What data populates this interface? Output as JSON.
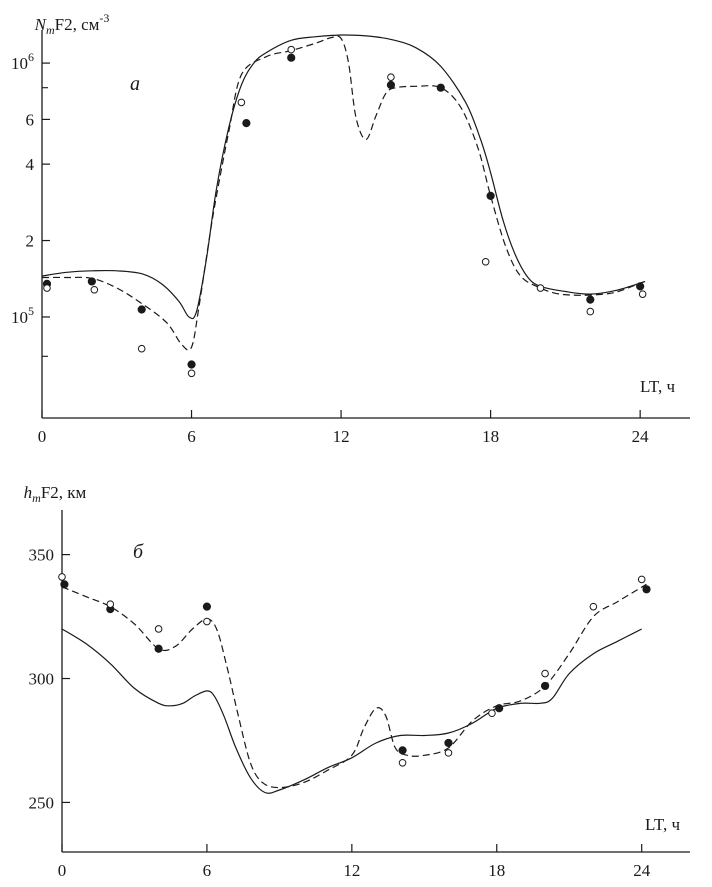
{
  "chart_data": [
    {
      "type": "line",
      "panel_label": "а",
      "ylabel": {
        "main": "N",
        "sub": "m",
        "rest": "F2, см",
        "sup": "-3"
      },
      "xlabel": "LT, ч",
      "xlim": [
        0,
        26
      ],
      "ylim": [
        40000,
        1350000
      ],
      "yscale": "log",
      "xticks": [
        0,
        6,
        12,
        18,
        24
      ],
      "yticks": [
        {
          "value": 100000,
          "base": "10",
          "sup": "5"
        },
        {
          "value": 200000,
          "label": "2"
        },
        {
          "value": 400000,
          "label": "4"
        },
        {
          "value": 600000,
          "label": "6"
        },
        {
          "value": 1000000,
          "base": "10",
          "sup": "6"
        }
      ],
      "minor_yticks": [
        70000,
        800000
      ],
      "series": [
        {
          "style": "solid",
          "x": [
            0,
            1,
            2,
            3,
            4,
            4.8,
            5.5,
            5.9,
            6.2,
            6.6,
            7,
            7.5,
            8,
            8.5,
            9,
            10,
            11,
            12,
            13,
            14,
            15,
            16,
            17,
            17.6,
            18,
            18.5,
            19,
            19.5,
            20,
            21,
            22,
            23,
            24.2
          ],
          "y": [
            145000,
            150000,
            152000,
            152000,
            148000,
            135000,
            115000,
            100000,
            105000,
            170000,
            320000,
            560000,
            820000,
            1000000,
            1100000,
            1230000,
            1270000,
            1290000,
            1280000,
            1240000,
            1150000,
            970000,
            700000,
            500000,
            370000,
            240000,
            175000,
            143000,
            132000,
            126000,
            123000,
            127000,
            138000
          ]
        },
        {
          "style": "dashed",
          "x": [
            0,
            1,
            2,
            3,
            4,
            5,
            5.6,
            6,
            6.3,
            6.7,
            7,
            7.5,
            8,
            9,
            10,
            11,
            11.6,
            12,
            12.3,
            12.6,
            13,
            13.4,
            13.8,
            14.2,
            15,
            16,
            16.8,
            17.5,
            18,
            18.6,
            19.2,
            20,
            20.6,
            21.2,
            22,
            23,
            24
          ],
          "y": [
            143000,
            143000,
            142000,
            130000,
            113000,
            95000,
            78000,
            76000,
            110000,
            200000,
            300000,
            540000,
            900000,
            1060000,
            1120000,
            1200000,
            1260000,
            1250000,
            1000000,
            610000,
            500000,
            620000,
            760000,
            800000,
            810000,
            800000,
            670000,
            460000,
            300000,
            190000,
            145000,
            130000,
            124000,
            122000,
            122000,
            125000,
            136000
          ]
        }
      ],
      "points": [
        {
          "marker": "filled",
          "x": [
            0.2,
            2,
            4,
            6,
            8.2,
            10,
            14,
            16,
            18,
            22,
            24
          ],
          "y": [
            135000,
            138000,
            107000,
            65000,
            580000,
            1050000,
            820000,
            800000,
            300000,
            117000,
            132000
          ]
        },
        {
          "marker": "open",
          "x": [
            0.2,
            2.1,
            4,
            6,
            8,
            10,
            14,
            17.8,
            20,
            22,
            24.1
          ],
          "y": [
            130000,
            128000,
            75000,
            60000,
            700000,
            1130000,
            880000,
            165000,
            130000,
            105000,
            123000
          ]
        }
      ]
    },
    {
      "type": "line",
      "panel_label": "б",
      "ylabel": {
        "main": "h",
        "sub": "m",
        "rest": "F2, км"
      },
      "xlabel": "LT, ч",
      "xlim": [
        0,
        26
      ],
      "ylim": [
        230,
        368
      ],
      "yscale": "linear",
      "xticks": [
        0,
        6,
        12,
        18,
        24
      ],
      "yticks": [
        250,
        300,
        350
      ],
      "series": [
        {
          "style": "solid",
          "x": [
            0,
            1,
            2,
            3,
            4,
            4.5,
            5,
            5.5,
            6,
            6.3,
            6.7,
            7.2,
            7.8,
            8.4,
            9,
            10,
            11,
            12,
            13,
            14,
            15,
            16,
            17,
            18,
            19,
            19.8,
            20.3,
            21,
            22,
            23,
            24
          ],
          "y": [
            320,
            314,
            306,
            296,
            290,
            289,
            290,
            293,
            295,
            293,
            285,
            272,
            260,
            254,
            255,
            259,
            264,
            268,
            274,
            277,
            277,
            278,
            282,
            288,
            290,
            290,
            292,
            302,
            310,
            315,
            320
          ]
        },
        {
          "style": "dashed",
          "x": [
            0,
            1,
            2,
            3,
            4,
            4.7,
            5.4,
            6,
            6.4,
            6.8,
            7.3,
            7.8,
            8.3,
            9,
            10,
            11,
            12,
            12.5,
            13,
            13.4,
            13.8,
            14.3,
            15,
            16,
            17,
            18,
            19,
            20,
            21,
            22,
            23,
            24.2
          ],
          "y": [
            337,
            333,
            329,
            322,
            312,
            313,
            320,
            324,
            320,
            306,
            285,
            266,
            258,
            256,
            258,
            263,
            269,
            280,
            288,
            285,
            272,
            269,
            269,
            272,
            283,
            289,
            291,
            297,
            310,
            325,
            331,
            338
          ]
        }
      ],
      "points": [
        {
          "marker": "filled",
          "x": [
            0.1,
            2,
            4,
            6,
            14.1,
            16,
            18.1,
            20,
            24.2
          ],
          "y": [
            338,
            328,
            312,
            329,
            271,
            274,
            288,
            297,
            336
          ]
        },
        {
          "marker": "open",
          "x": [
            0,
            2,
            4,
            6,
            14.1,
            16,
            17.8,
            20,
            22,
            24
          ],
          "y": [
            341,
            330,
            320,
            323,
            266,
            270,
            286,
            302,
            329,
            340
          ]
        }
      ]
    }
  ]
}
